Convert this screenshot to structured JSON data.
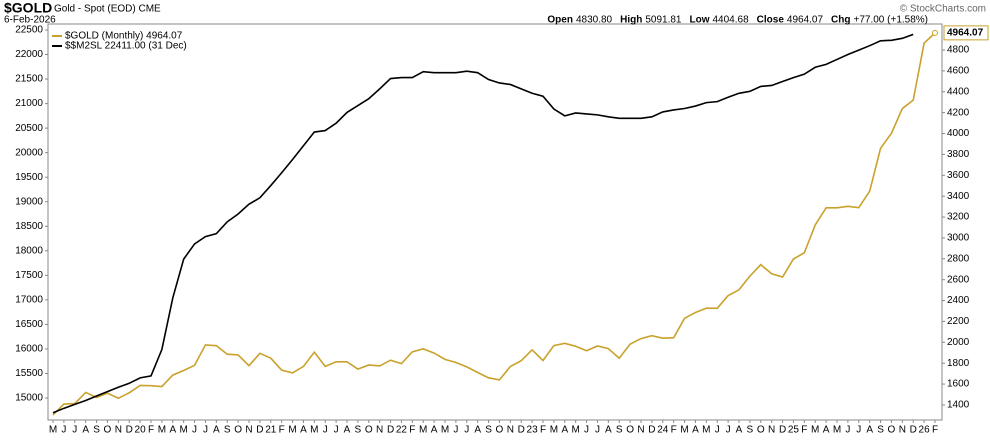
{
  "chart_data": {
    "type": "line",
    "title": "$GOLD",
    "subtitle": "Gold - Spot (EOD) CME",
    "date": "6-Feb-2026",
    "stats": [
      {
        "label": "Open",
        "value": "4830.80"
      },
      {
        "label": "High",
        "value": "5091.81"
      },
      {
        "label": "Low",
        "value": "4404.68"
      },
      {
        "label": "Close",
        "value": "4964.07"
      },
      {
        "label": "Chg",
        "value": "+77.00 (+1.58%)"
      }
    ],
    "watermark": "© StockCharts.com",
    "categories": [
      "M",
      "J",
      "J",
      "A",
      "S",
      "O",
      "N",
      "D",
      "20",
      "F",
      "M",
      "A",
      "M",
      "J",
      "J",
      "A",
      "S",
      "O",
      "N",
      "D",
      "21",
      "F",
      "M",
      "A",
      "M",
      "J",
      "J",
      "A",
      "S",
      "O",
      "N",
      "D",
      "22",
      "F",
      "M",
      "A",
      "M",
      "J",
      "J",
      "A",
      "S",
      "O",
      "N",
      "D",
      "23",
      "F",
      "M",
      "A",
      "M",
      "J",
      "J",
      "A",
      "S",
      "O",
      "N",
      "D",
      "24",
      "F",
      "M",
      "A",
      "M",
      "J",
      "J",
      "A",
      "S",
      "O",
      "N",
      "D",
      "25",
      "F",
      "M",
      "A",
      "M",
      "J",
      "J",
      "A",
      "S",
      "O",
      "N",
      "D",
      "26",
      "F"
    ],
    "series": [
      {
        "name": "$GOLD (Monthly) 4964.07",
        "color": "#c9a12b",
        "axis": "y2",
        "values": [
          1305,
          1409,
          1413,
          1520,
          1472,
          1513,
          1464,
          1517,
          1587,
          1585,
          1577,
          1686,
          1730,
          1780,
          1975,
          1968,
          1886,
          1879,
          1776,
          1895,
          1848,
          1734,
          1707,
          1769,
          1906,
          1770,
          1814,
          1813,
          1743,
          1783,
          1774,
          1829,
          1796,
          1909,
          1937,
          1897,
          1837,
          1807,
          1765,
          1711,
          1660,
          1640,
          1768,
          1824,
          1928,
          1826,
          1969,
          1990,
          1962,
          1919,
          1965,
          1940,
          1848,
          1983,
          2036,
          2063,
          2040,
          2044,
          2230,
          2286,
          2327,
          2326,
          2447,
          2503,
          2634,
          2744,
          2657,
          2625,
          2798,
          2858,
          3124,
          3288,
          3288,
          3303,
          3290,
          3448,
          3858,
          4002,
          4239,
          4320,
          4865,
          4964.07
        ]
      },
      {
        "name": "$$M2SL 22411.00 (31 Dec)",
        "color": "#000000",
        "values": [
          14700,
          14790,
          14870,
          14950,
          15040,
          15130,
          15220,
          15300,
          15410,
          15450,
          15990,
          17040,
          17830,
          18140,
          18290,
          18350,
          18590,
          18750,
          18950,
          19080,
          19330,
          19590,
          19860,
          20140,
          20420,
          20450,
          20600,
          20820,
          20960,
          21100,
          21300,
          21510,
          21530,
          21530,
          21650,
          21630,
          21630,
          21630,
          21660,
          21630,
          21490,
          21420,
          21390,
          21300,
          21210,
          21150,
          20890,
          20750,
          20810,
          20790,
          20770,
          20730,
          20700,
          20700,
          20700,
          20730,
          20830,
          20870,
          20900,
          20950,
          21020,
          21040,
          21130,
          21210,
          21250,
          21350,
          21370,
          21450,
          21530,
          21600,
          21740,
          21800,
          21900,
          22000,
          22090,
          22180,
          22280,
          22290,
          22330,
          22411,
          null,
          null
        ]
      }
    ],
    "ylim": [
      14552,
      22622
    ],
    "yticks": [
      15000,
      15500,
      16000,
      16500,
      17000,
      17500,
      18000,
      18500,
      19000,
      19500,
      20000,
      20500,
      21000,
      21500,
      22000,
      22500
    ],
    "y2lim": [
      1256,
      5049
    ],
    "y2ticks": [
      1400,
      1600,
      1800,
      2000,
      2200,
      2400,
      2600,
      2800,
      3000,
      3200,
      3400,
      3600,
      3800,
      4000,
      4200,
      4400,
      4600,
      4800
    ],
    "legend": "top-left"
  }
}
